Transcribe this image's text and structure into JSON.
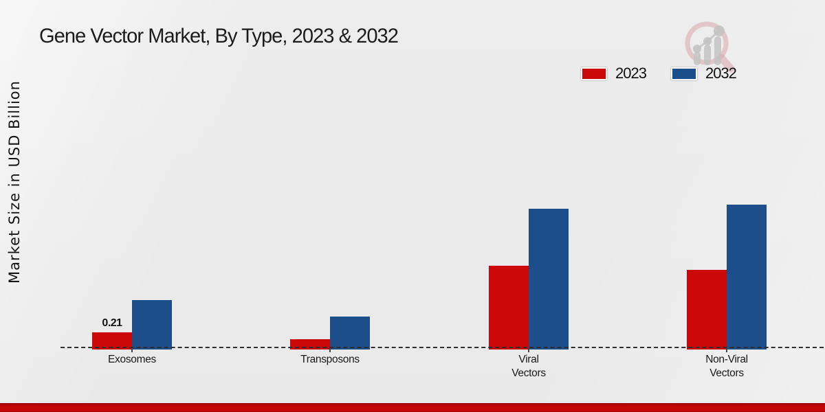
{
  "page": {
    "title": "Gene Vector Market, By Type, 2023 & 2032"
  },
  "colors": {
    "background": "#ebebeb",
    "series_2023": "#cc0707",
    "series_2032": "#1b4e8b",
    "baseline_dash": "#2e2e2e",
    "bottom_band": "#c20505",
    "logo_ring": "#d9a6ac",
    "logo_bars": "#c3c3c3"
  },
  "icons": {
    "logo": "magnifier-growth-chart-watermark-icon"
  },
  "chart_data": {
    "type": "bar",
    "title": "Gene Vector Market, By Type, 2023 & 2032",
    "xlabel": "",
    "ylabel": "Market Size in USD Billion",
    "categories": [
      "Exosomes",
      "Transposons",
      "Viral\nVectors",
      "Non-Viral\nVectors"
    ],
    "category_slugs": [
      "exosomes",
      "transposons",
      "viral-vectors",
      "non-viral-vectors"
    ],
    "series": [
      {
        "name": "2023",
        "color": "#cc0707",
        "values": [
          0.21,
          0.12,
          1.1,
          1.04
        ],
        "labels": [
          "0.21",
          null,
          null,
          null
        ]
      },
      {
        "name": "2032",
        "color": "#1b4e8b",
        "values": [
          0.64,
          0.42,
          1.85,
          1.91
        ],
        "labels": [
          null,
          null,
          null,
          null
        ]
      }
    ],
    "ylim": [
      0,
      2.0
    ],
    "grid": false,
    "y_axis_ticks_visible": false,
    "baseline_style": "dashed",
    "legend_position": "top-right"
  }
}
